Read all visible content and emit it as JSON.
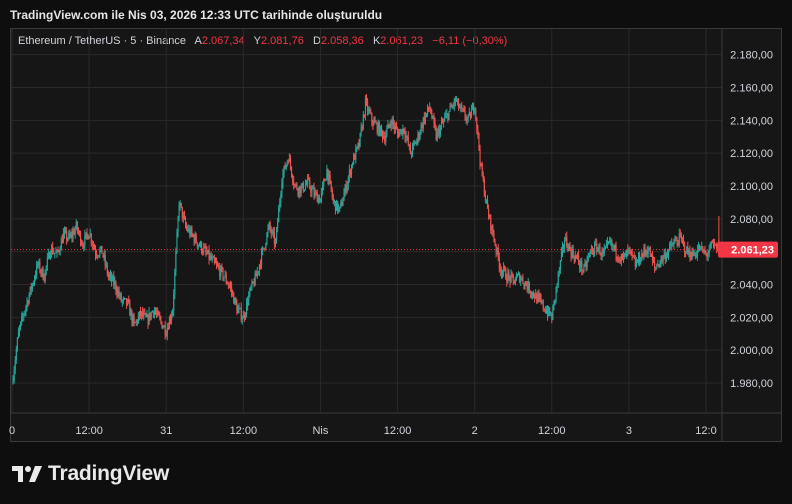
{
  "caption": "TradingView.com ile Nis 03, 2026 12:33 UTC tarihinde oluşturuldu",
  "legend": {
    "symbol": "Ethereum / TetherUS · 5 · Binance",
    "open_label": "A",
    "open": "2.067,34",
    "high_label": "Y",
    "high": "2.081,76",
    "low_label": "D",
    "low": "2.058,36",
    "close_label": "K",
    "close": "2.061,23",
    "change": "−6,11 (−0,30%)"
  },
  "brand": "TradingView",
  "colors": {
    "up": "#26a69a",
    "down": "#ef5350",
    "price_tag": "#f23645",
    "grid": "#2a2a2a"
  },
  "chart_data": {
    "type": "candlestick",
    "ylim": [
      1970,
      2190
    ],
    "y_ticks": [
      1980,
      2000,
      2020,
      2040,
      2060,
      2080,
      2100,
      2120,
      2140,
      2160,
      2180
    ],
    "y_tick_labels": [
      "1.980,00",
      "2.000,00",
      "2.020,00",
      "2.040,00",
      "2.060,00",
      "2.080,00",
      "2.100,00",
      "2.120,00",
      "2.140,00",
      "2.160,00",
      "2.180,00"
    ],
    "x_ticks": [
      {
        "label": "0",
        "t": 0
      },
      {
        "label": "12:00",
        "t": 12
      },
      {
        "label": "31",
        "t": 24
      },
      {
        "label": "12:00",
        "t": 36
      },
      {
        "label": "Nis",
        "t": 48
      },
      {
        "label": "12:00",
        "t": 60
      },
      {
        "label": "2",
        "t": 72
      },
      {
        "label": "12:00",
        "t": 84
      },
      {
        "label": "3",
        "t": 96
      },
      {
        "label": "12:0",
        "t": 108
      }
    ],
    "last_price": 2061.23,
    "last_price_label": "2.061,23",
    "path": [
      [
        0,
        1980
      ],
      [
        1,
        2010
      ],
      [
        2,
        2025
      ],
      [
        3,
        2038
      ],
      [
        4,
        2052
      ],
      [
        5,
        2045
      ],
      [
        6,
        2062
      ],
      [
        7,
        2058
      ],
      [
        8,
        2070
      ],
      [
        9,
        2068
      ],
      [
        10,
        2075
      ],
      [
        11,
        2065
      ],
      [
        12,
        2072
      ],
      [
        13,
        2060
      ],
      [
        14,
        2060
      ],
      [
        15,
        2045
      ],
      [
        16,
        2040
      ],
      [
        17,
        2030
      ],
      [
        18,
        2028
      ],
      [
        19,
        2015
      ],
      [
        20,
        2022
      ],
      [
        21,
        2018
      ],
      [
        22,
        2025
      ],
      [
        23,
        2018
      ],
      [
        24,
        2012
      ],
      [
        25,
        2025
      ],
      [
        26,
        2090
      ],
      [
        27,
        2075
      ],
      [
        28,
        2070
      ],
      [
        29,
        2065
      ],
      [
        30,
        2060
      ],
      [
        31,
        2055
      ],
      [
        32,
        2050
      ],
      [
        33,
        2045
      ],
      [
        34,
        2038
      ],
      [
        35,
        2025
      ],
      [
        36,
        2020
      ],
      [
        37,
        2035
      ],
      [
        38,
        2045
      ],
      [
        39,
        2060
      ],
      [
        40,
        2075
      ],
      [
        41,
        2065
      ],
      [
        42,
        2105
      ],
      [
        43,
        2118
      ],
      [
        44,
        2100
      ],
      [
        45,
        2098
      ],
      [
        46,
        2102
      ],
      [
        47,
        2095
      ],
      [
        48,
        2092
      ],
      [
        49,
        2110
      ],
      [
        50,
        2090
      ],
      [
        51,
        2085
      ],
      [
        52,
        2100
      ],
      [
        53,
        2115
      ],
      [
        54,
        2125
      ],
      [
        55,
        2150
      ],
      [
        56,
        2140
      ],
      [
        57,
        2135
      ],
      [
        58,
        2130
      ],
      [
        59,
        2140
      ],
      [
        60,
        2132
      ],
      [
        61,
        2135
      ],
      [
        62,
        2120
      ],
      [
        63,
        2128
      ],
      [
        64,
        2140
      ],
      [
        65,
        2148
      ],
      [
        66,
        2130
      ],
      [
        67,
        2138
      ],
      [
        68,
        2145
      ],
      [
        69,
        2152
      ],
      [
        70,
        2145
      ],
      [
        71,
        2140
      ],
      [
        72,
        2150
      ],
      [
        73,
        2110
      ],
      [
        74,
        2085
      ],
      [
        75,
        2068
      ],
      [
        76,
        2050
      ],
      [
        77,
        2045
      ],
      [
        78,
        2042
      ],
      [
        79,
        2045
      ],
      [
        80,
        2040
      ],
      [
        81,
        2035
      ],
      [
        82,
        2030
      ],
      [
        83,
        2025
      ],
      [
        84,
        2020
      ],
      [
        85,
        2045
      ],
      [
        86,
        2068
      ],
      [
        87,
        2060
      ],
      [
        88,
        2055
      ],
      [
        89,
        2048
      ],
      [
        90,
        2060
      ],
      [
        91,
        2063
      ],
      [
        92,
        2058
      ],
      [
        93,
        2065
      ],
      [
        94,
        2060
      ],
      [
        95,
        2055
      ],
      [
        96,
        2060
      ],
      [
        97,
        2052
      ],
      [
        98,
        2058
      ],
      [
        99,
        2062
      ],
      [
        100,
        2050
      ],
      [
        101,
        2055
      ],
      [
        102,
        2060
      ],
      [
        103,
        2065
      ],
      [
        104,
        2068
      ],
      [
        105,
        2060
      ],
      [
        106,
        2058
      ],
      [
        107,
        2062
      ],
      [
        108,
        2058
      ],
      [
        109,
        2064
      ],
      [
        110,
        2061
      ]
    ]
  }
}
